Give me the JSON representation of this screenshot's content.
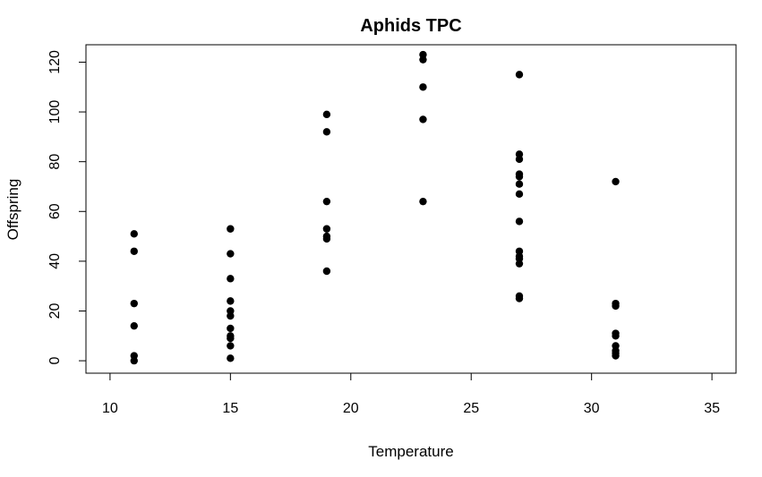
{
  "chart_data": {
    "type": "scatter",
    "title": "Aphids TPC",
    "xlabel": "Temperature",
    "ylabel": "Offspring",
    "xlim": [
      9,
      36
    ],
    "ylim": [
      -5,
      127
    ],
    "xticks": [
      "10",
      "15",
      "20",
      "25",
      "30",
      "35"
    ],
    "yticks": [
      "0",
      "20",
      "40",
      "60",
      "80",
      "100",
      "120"
    ],
    "grid": false,
    "legend": "none",
    "marker_color": "#000000",
    "points": [
      {
        "x": 11,
        "y": 51
      },
      {
        "x": 11,
        "y": 44
      },
      {
        "x": 11,
        "y": 23
      },
      {
        "x": 11,
        "y": 14
      },
      {
        "x": 11,
        "y": 2
      },
      {
        "x": 11,
        "y": 0
      },
      {
        "x": 15,
        "y": 53
      },
      {
        "x": 15,
        "y": 43
      },
      {
        "x": 15,
        "y": 33
      },
      {
        "x": 15,
        "y": 24
      },
      {
        "x": 15,
        "y": 20
      },
      {
        "x": 15,
        "y": 18
      },
      {
        "x": 15,
        "y": 13
      },
      {
        "x": 15,
        "y": 10
      },
      {
        "x": 15,
        "y": 9
      },
      {
        "x": 15,
        "y": 6
      },
      {
        "x": 15,
        "y": 1
      },
      {
        "x": 19,
        "y": 99
      },
      {
        "x": 19,
        "y": 92
      },
      {
        "x": 19,
        "y": 64
      },
      {
        "x": 19,
        "y": 53
      },
      {
        "x": 19,
        "y": 50
      },
      {
        "x": 19,
        "y": 49
      },
      {
        "x": 19,
        "y": 36
      },
      {
        "x": 23,
        "y": 123
      },
      {
        "x": 23,
        "y": 121
      },
      {
        "x": 23,
        "y": 110
      },
      {
        "x": 23,
        "y": 97
      },
      {
        "x": 23,
        "y": 64
      },
      {
        "x": 27,
        "y": 115
      },
      {
        "x": 27,
        "y": 83
      },
      {
        "x": 27,
        "y": 81
      },
      {
        "x": 27,
        "y": 75
      },
      {
        "x": 27,
        "y": 74
      },
      {
        "x": 27,
        "y": 71
      },
      {
        "x": 27,
        "y": 67
      },
      {
        "x": 27,
        "y": 56
      },
      {
        "x": 27,
        "y": 44
      },
      {
        "x": 27,
        "y": 42
      },
      {
        "x": 27,
        "y": 41
      },
      {
        "x": 27,
        "y": 39
      },
      {
        "x": 27,
        "y": 26
      },
      {
        "x": 27,
        "y": 25
      },
      {
        "x": 31,
        "y": 72
      },
      {
        "x": 31,
        "y": 23
      },
      {
        "x": 31,
        "y": 22
      },
      {
        "x": 31,
        "y": 11
      },
      {
        "x": 31,
        "y": 10
      },
      {
        "x": 31,
        "y": 6
      },
      {
        "x": 31,
        "y": 4
      },
      {
        "x": 31,
        "y": 3
      },
      {
        "x": 31,
        "y": 2
      }
    ]
  }
}
